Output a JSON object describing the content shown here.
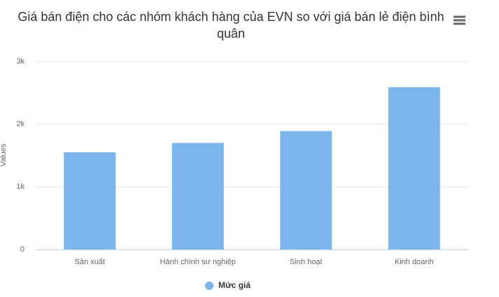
{
  "chart_data": {
    "type": "bar",
    "title": "Giá bán điện cho các nhóm khách hàng của EVN so với giá bán lẻ điện bình quân",
    "y_label": "Values",
    "categories": [
      "Sản xuất",
      "Hành chính sư nghiệp",
      "Sinh hoạt",
      "Kinh doanh"
    ],
    "series": [
      {
        "name": "Mức giá",
        "color": "#7cb5ec",
        "values": [
          1550,
          1700,
          1890,
          2590
        ]
      }
    ],
    "ylim": [
      0,
      3000
    ],
    "yticks": [
      0,
      {
        "value": 1000,
        "label": "1k"
      },
      {
        "value": 2000,
        "label": "2k"
      },
      {
        "value": 3000,
        "label": "3k"
      }
    ],
    "grid": true
  }
}
